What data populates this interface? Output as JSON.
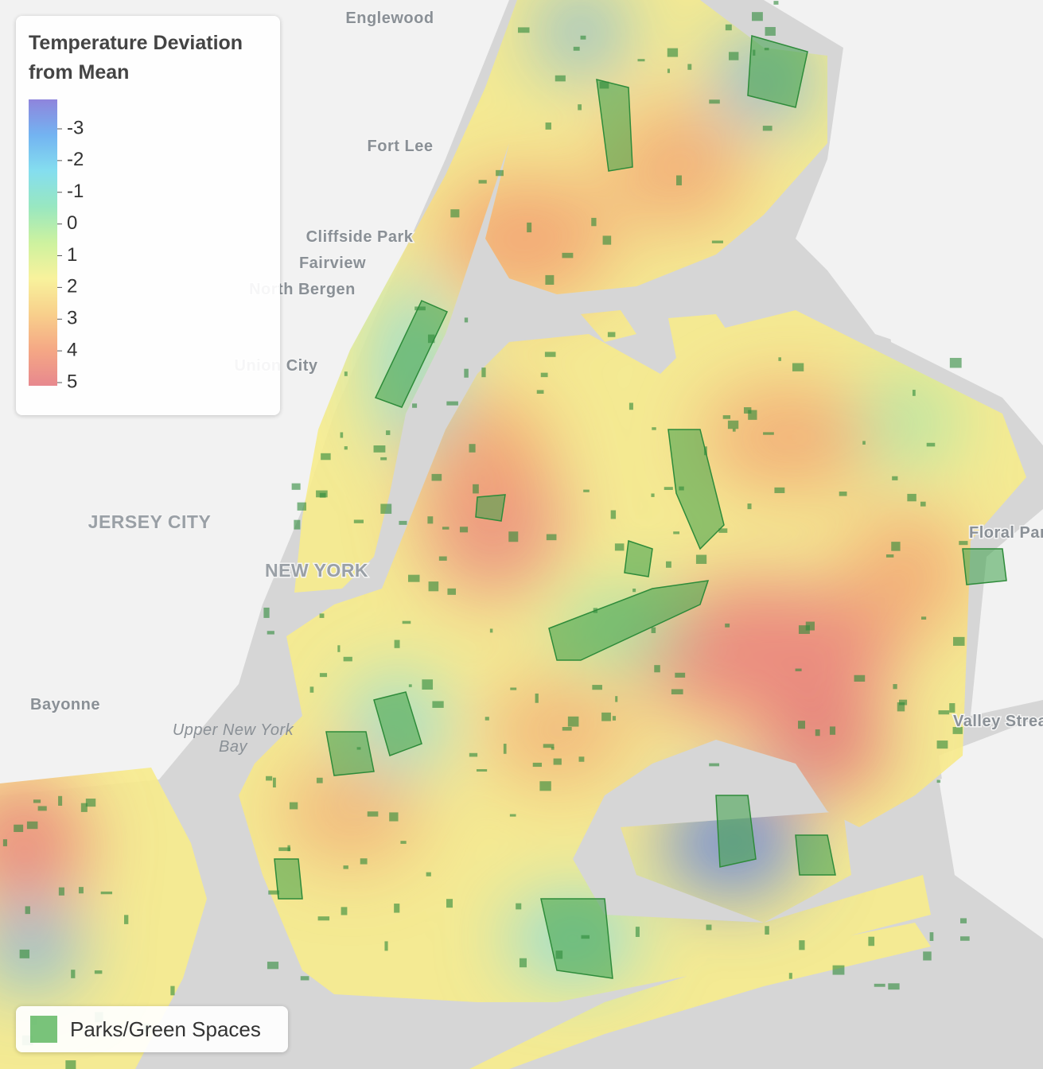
{
  "legend": {
    "title": "Temperature Deviation from Mean",
    "ticks": [
      -3,
      -2,
      -1,
      0,
      1,
      2,
      3,
      4,
      5
    ],
    "colors": [
      "#7b6fd6",
      "#5aa6ef",
      "#6fd8ec",
      "#86e3b5",
      "#c4ef8e",
      "#f7f08b",
      "#f7c777",
      "#f3986f",
      "#e3737a"
    ]
  },
  "parks_legend": {
    "label": "Parks/Green Spaces",
    "color": "#4caf50"
  },
  "places": [
    "Englewood",
    "Fort Lee",
    "Cliffside Park",
    "Fairview",
    "North Bergen",
    "Union City",
    "JERSEY CITY",
    "NEW YORK",
    "Bayonne",
    "Upper New York",
    "Bay",
    "Floral Park",
    "Valley Stream"
  ]
}
